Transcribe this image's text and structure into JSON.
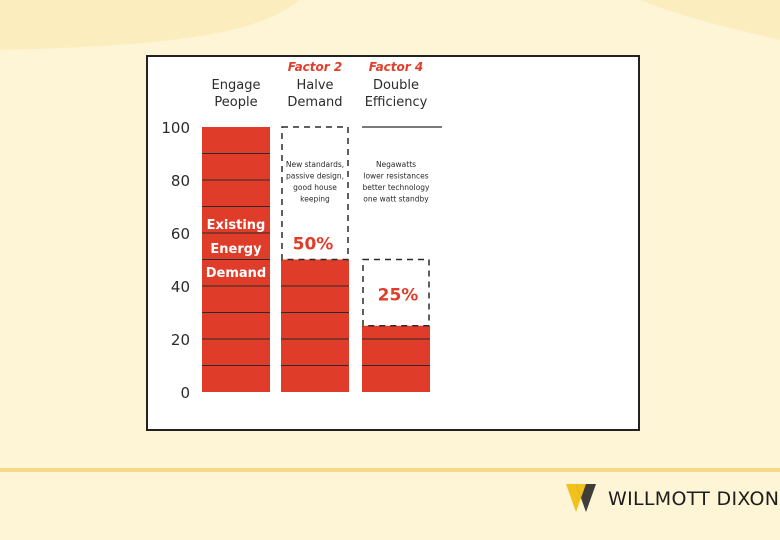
{
  "colors": {
    "bar": "#e03c2a",
    "accent_text": "#e03c2a",
    "grid": "#2b2b2b",
    "background": "#fdf5d6",
    "logo_yellow": "#f1c21b"
  },
  "logo": {
    "text": "WILLMOTT DIXON",
    "icon": "willmott-dixon-mark-icon"
  },
  "chart_data": {
    "type": "bar",
    "ylim": [
      0,
      100
    ],
    "yticks": [
      0,
      20,
      40,
      60,
      80,
      100
    ],
    "grid": false,
    "columns": [
      {
        "factor": "",
        "header": [
          "Engage",
          "People"
        ],
        "value": 100,
        "baseline": 100,
        "labels": [
          "Existing",
          "Energy",
          "Demand"
        ],
        "note": [],
        "percent": ""
      },
      {
        "factor": "Factor 2",
        "header": [
          "Halve",
          "Demand"
        ],
        "value": 50,
        "baseline": 100,
        "labels": [],
        "note": [
          "New standards,",
          "passive design,",
          "good house",
          "keeping"
        ],
        "percent": "50%"
      },
      {
        "factor": "Factor 4",
        "header": [
          "Double",
          "Efficiency"
        ],
        "value": 25,
        "baseline": 50,
        "labels": [],
        "note": [
          "Negawatts",
          "lower resistances",
          "better technology",
          "one watt standby"
        ],
        "percent": "25%"
      }
    ]
  }
}
